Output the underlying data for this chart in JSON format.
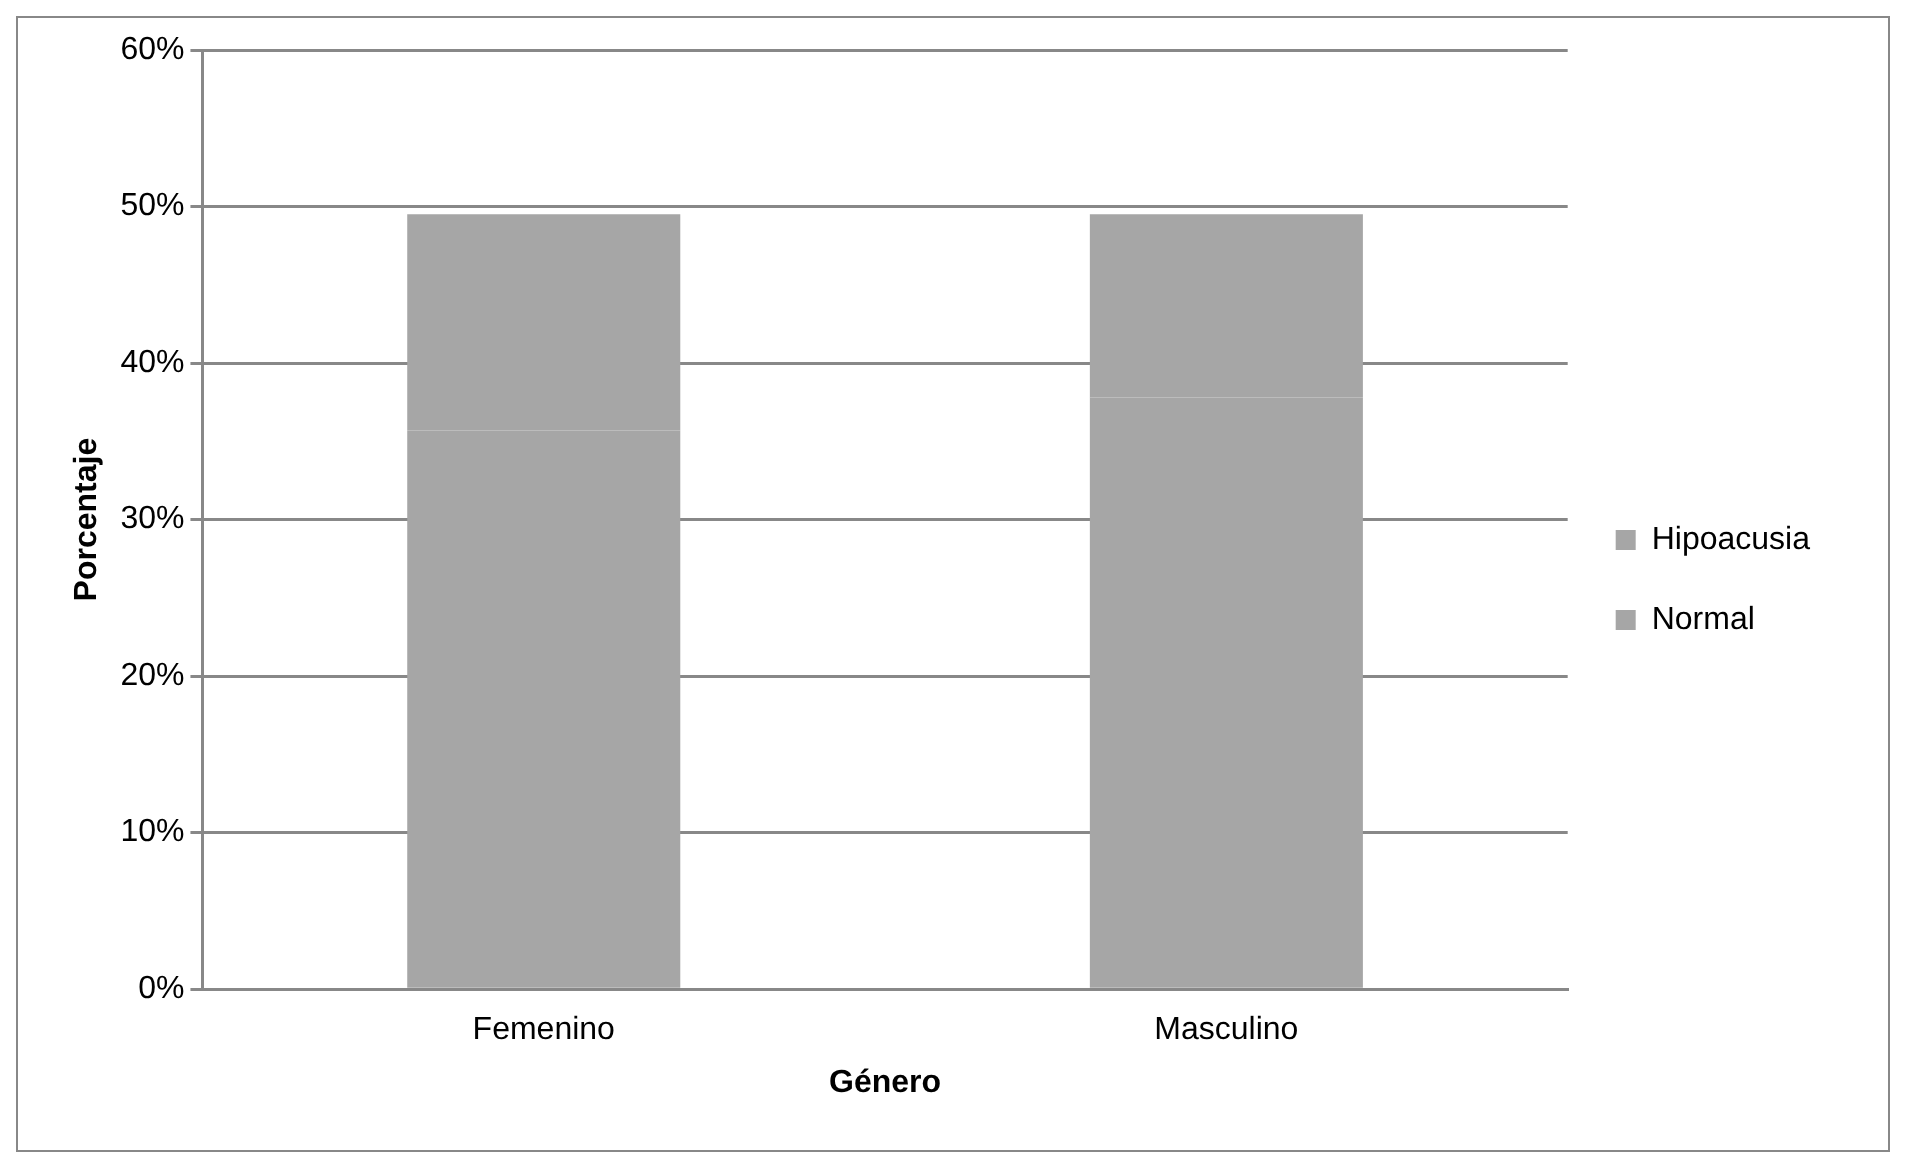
{
  "chart_data": {
    "type": "bar",
    "stacked": true,
    "xlabel": "Género",
    "ylabel": "Porcentaje",
    "categories": [
      "Femenino",
      "Masculino"
    ],
    "series": [
      {
        "name": "Normal",
        "color": "#a6a6a6",
        "values": [
          35.7,
          37.8
        ]
      },
      {
        "name": "Hipoacusia",
        "color": "#a6a6a6",
        "values": [
          13.8,
          11.7
        ]
      }
    ],
    "ylim": [
      0,
      60
    ],
    "yticks": [
      {
        "value": 0,
        "label": "0%"
      },
      {
        "value": 10,
        "label": "10%"
      },
      {
        "value": 20,
        "label": "20%"
      },
      {
        "value": 30,
        "label": "30%"
      },
      {
        "value": 40,
        "label": "40%"
      },
      {
        "value": 50,
        "label": "50%"
      },
      {
        "value": 60,
        "label": "60%"
      }
    ],
    "grid": "y",
    "legend": "right"
  }
}
